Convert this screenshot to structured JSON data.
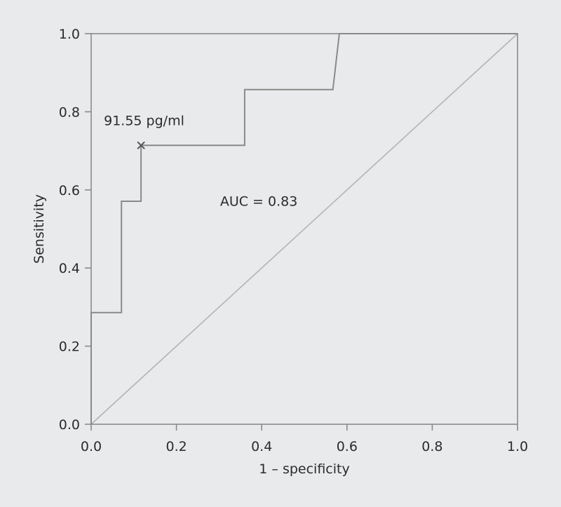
{
  "chart_data": {
    "type": "line",
    "xlabel": "1 – specificity",
    "ylabel": "Sensitivity",
    "xlim": [
      0,
      1
    ],
    "ylim": [
      0,
      1
    ],
    "x_ticks": [
      "0.0",
      "0.2",
      "0.4",
      "0.6",
      "0.8",
      "1.0"
    ],
    "y_ticks": [
      "0.0",
      "0.2",
      "0.4",
      "0.6",
      "0.8",
      "1.0"
    ],
    "grid": false,
    "series": [
      {
        "kind": "roc-curve",
        "color": "#8a8a8a",
        "x": [
          0.0,
          0.0,
          0.071,
          0.071,
          0.117,
          0.117,
          0.36,
          0.36,
          0.567,
          0.582,
          1.0
        ],
        "y": [
          0.0,
          0.286,
          0.286,
          0.571,
          0.571,
          0.714,
          0.714,
          0.857,
          0.857,
          1.0,
          1.0
        ]
      },
      {
        "kind": "reference-diagonal",
        "color": "#b3b3b3",
        "x": [
          0,
          1
        ],
        "y": [
          0,
          1
        ]
      }
    ],
    "annotations": [
      {
        "kind": "cutoff-marker",
        "text": "91.55 pg/ml",
        "marker": "x",
        "x": 0.117,
        "y": 0.714
      },
      {
        "kind": "auc-label",
        "text": "AUC = 0.83",
        "x": 0.355,
        "y": 0.57
      }
    ]
  }
}
